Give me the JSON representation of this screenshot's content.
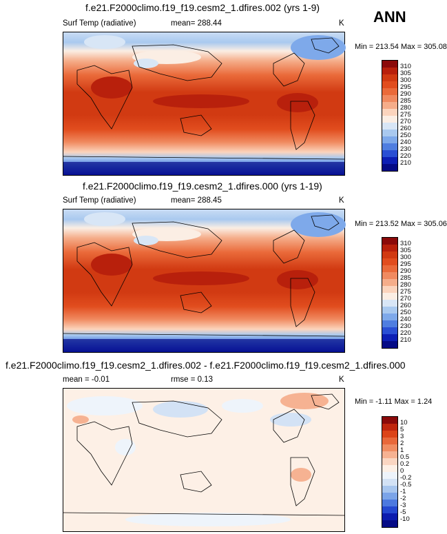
{
  "header": {
    "season": "ANN"
  },
  "chart_data": [
    {
      "type": "heatmap",
      "title": "f.e21.F2000climo.f19_f19.cesm2_1.dfires.002 (yrs 1-9)",
      "variable": "Surf Temp (radiative)",
      "mean_label": "mean= 288.44",
      "units": "K",
      "minmax": "Min = 213.54 Max = 305.08",
      "min": 213.54,
      "max": 305.08,
      "mean": 288.44,
      "colorbar": {
        "levels": [
          "310",
          "305",
          "300",
          "295",
          "290",
          "285",
          "280",
          "275",
          "270",
          "260",
          "250",
          "240",
          "230",
          "220",
          "210"
        ],
        "colors": [
          "#8b0a0a",
          "#b8200c",
          "#d13a12",
          "#e14d1e",
          "#ea6a3a",
          "#f08a60",
          "#f5ad8a",
          "#fbd4bd",
          "#fbeee4",
          "#d8e6f6",
          "#a9c9ef",
          "#7ea9ea",
          "#4f7ee0",
          "#2a4fd4",
          "#0d1fb5",
          "#050b86"
        ]
      }
    },
    {
      "type": "heatmap",
      "title": "f.e21.F2000climo.f19_f19.cesm2_1.dfires.000 (yrs 1-19)",
      "variable": "Surf Temp (radiative)",
      "mean_label": "mean= 288.45",
      "units": "K",
      "minmax": "Min = 213.52 Max = 305.06",
      "min": 213.52,
      "max": 305.06,
      "mean": 288.45,
      "colorbar": {
        "levels": [
          "310",
          "305",
          "300",
          "295",
          "290",
          "285",
          "280",
          "275",
          "270",
          "260",
          "250",
          "240",
          "230",
          "220",
          "210"
        ],
        "colors": [
          "#8b0a0a",
          "#b8200c",
          "#d13a12",
          "#e14d1e",
          "#ea6a3a",
          "#f08a60",
          "#f5ad8a",
          "#fbd4bd",
          "#fbeee4",
          "#d8e6f6",
          "#a9c9ef",
          "#7ea9ea",
          "#4f7ee0",
          "#2a4fd4",
          "#0d1fb5",
          "#050b86"
        ]
      }
    },
    {
      "type": "heatmap",
      "title": "f.e21.F2000climo.f19_f19.cesm2_1.dfires.002 - f.e21.F2000climo.f19_f19.cesm2_1.dfires.000",
      "mean_label": "mean =  -0.01",
      "rmse_label": "rmse =   0.13",
      "units": "K",
      "minmax": "Min =  -1.11 Max =   1.24",
      "min": -1.11,
      "max": 1.24,
      "mean": -0.01,
      "rmse": 0.13,
      "colorbar": {
        "levels": [
          "10",
          "5",
          "3",
          "2",
          "1",
          "0.5",
          "0.2",
          "0",
          "-0.2",
          "-0.5",
          "-1",
          "-2",
          "-3",
          "-5",
          "-10"
        ],
        "colors": [
          "#8b0a0a",
          "#c0260e",
          "#dc4418",
          "#e8683a",
          "#f08d62",
          "#f6b292",
          "#fad6c2",
          "#fdf0e6",
          "#eef4fb",
          "#d3e2f5",
          "#a8c6ee",
          "#7ba4e8",
          "#4c79df",
          "#2448d0",
          "#0c1cae",
          "#050b86"
        ]
      }
    }
  ]
}
